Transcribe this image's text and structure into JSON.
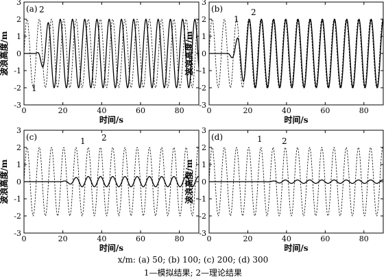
{
  "caption": {
    "line1": "x/m: (a) 50; (b) 100; (c) 200; (d) 300",
    "line2": "1—模拟结果; 2—理论结果"
  },
  "chart_data": [
    {
      "type": "line",
      "panel_label": "(a)",
      "xlabel": "时间/s",
      "ylabel": "波浪高度/m",
      "xlim": [
        0,
        90
      ],
      "ylim": [
        -3,
        3
      ],
      "xticks": [
        0,
        20,
        40,
        60,
        80
      ],
      "yticks": [
        -3,
        -2,
        -1,
        0,
        1,
        2,
        3
      ],
      "curve_labels": [
        "1",
        "2"
      ],
      "series": [
        {
          "name": "1",
          "style": "solid",
          "amplitude": 2.0,
          "period": 6.3,
          "phase_s": 4.5,
          "onset_s": 6.0,
          "ramp_s": 8.0
        },
        {
          "name": "2",
          "style": "dashed",
          "amplitude": 2.0,
          "period": 6.3,
          "phase_s": 0.0,
          "onset_s": 0.0,
          "ramp_s": 0.0
        }
      ]
    },
    {
      "type": "line",
      "panel_label": "(b)",
      "xlabel": "时间/s",
      "ylabel": "波浪高度/m",
      "xlim": [
        0,
        90
      ],
      "ylim": [
        -3,
        3
      ],
      "xticks": [
        0,
        20,
        40,
        60,
        80
      ],
      "yticks": [
        -3,
        -2,
        -1,
        0,
        1,
        2,
        3
      ],
      "curve_labels": [
        "1",
        "2"
      ],
      "series": [
        {
          "name": "1",
          "style": "solid",
          "amplitude": 2.0,
          "period": 6.3,
          "phase_s": 0.3,
          "onset_s": 9.0,
          "ramp_s": 12.0
        },
        {
          "name": "2",
          "style": "dashed",
          "amplitude": 2.0,
          "period": 6.3,
          "phase_s": 0.0,
          "onset_s": 0.0,
          "ramp_s": 0.0
        }
      ]
    },
    {
      "type": "line",
      "panel_label": "(c)",
      "xlabel": "时间/s",
      "ylabel": "波浪高度/m",
      "xlim": [
        0,
        90
      ],
      "ylim": [
        -3,
        3
      ],
      "xticks": [
        0,
        20,
        40,
        60,
        80
      ],
      "yticks": [
        -3,
        -2,
        -1,
        0,
        1,
        2,
        3
      ],
      "curve_labels": [
        "1",
        "2"
      ],
      "series": [
        {
          "name": "1",
          "style": "solid",
          "amplitude": 0.3,
          "period": 6.3,
          "phase_s": 0.0,
          "onset_s": 18.0,
          "ramp_s": 12.0
        },
        {
          "name": "2",
          "style": "dashed",
          "amplitude": 2.0,
          "period": 6.3,
          "phase_s": 0.0,
          "onset_s": 0.0,
          "ramp_s": 0.0
        }
      ]
    },
    {
      "type": "line",
      "panel_label": "(d)",
      "xlabel": "时间/s",
      "ylabel": "波浪高度/m",
      "xlim": [
        0,
        90
      ],
      "ylim": [
        -3,
        3
      ],
      "xticks": [
        0,
        20,
        40,
        60,
        80
      ],
      "yticks": [
        -3,
        -2,
        -1,
        0,
        1,
        2,
        3
      ],
      "curve_labels": [
        "1",
        "2"
      ],
      "series": [
        {
          "name": "1",
          "style": "solid",
          "amplitude": 0.1,
          "period": 6.3,
          "phase_s": 0.0,
          "onset_s": 28.0,
          "ramp_s": 12.0
        },
        {
          "name": "2",
          "style": "dashed",
          "amplitude": 2.0,
          "period": 6.3,
          "phase_s": 0.0,
          "onset_s": 0.0,
          "ramp_s": 0.0
        }
      ]
    }
  ]
}
